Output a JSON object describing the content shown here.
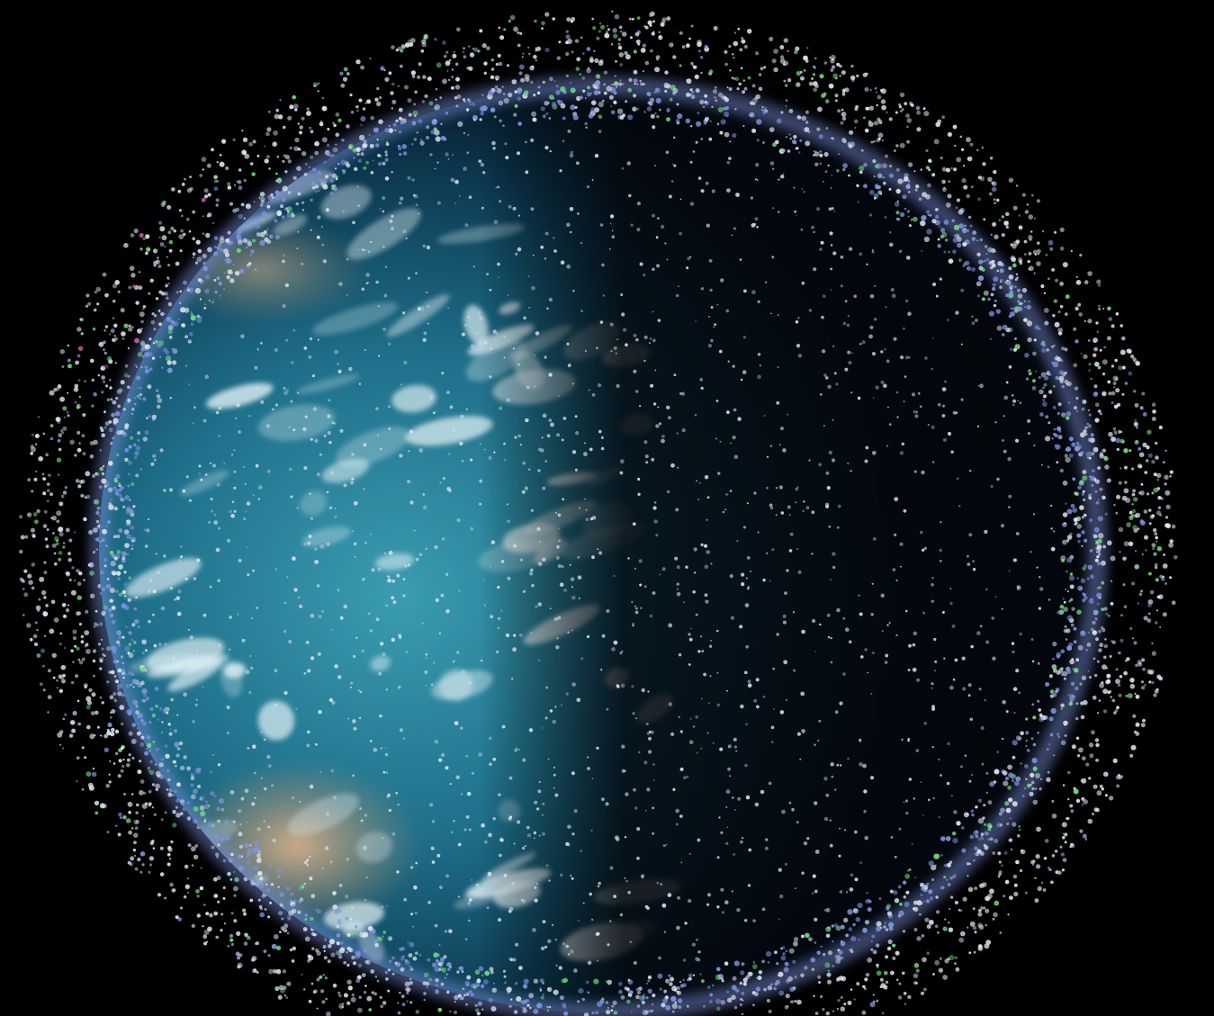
{
  "scene": {
    "subject": "earth-with-orbital-debris",
    "colors": {
      "space": "#000000",
      "ocean": "#1f6f8a",
      "ocean_deep": "#0d3a52",
      "cloud": "#e6f4f8",
      "land": "#c9a37a",
      "night_side": "#05080e",
      "atmosphere": "#7f95e0",
      "debris_main": "#dfe6ef",
      "debris_accent_green": "#6fe07a",
      "debris_accent_magenta": "#d14fa5",
      "debris_accent_red": "#b23340"
    }
  }
}
